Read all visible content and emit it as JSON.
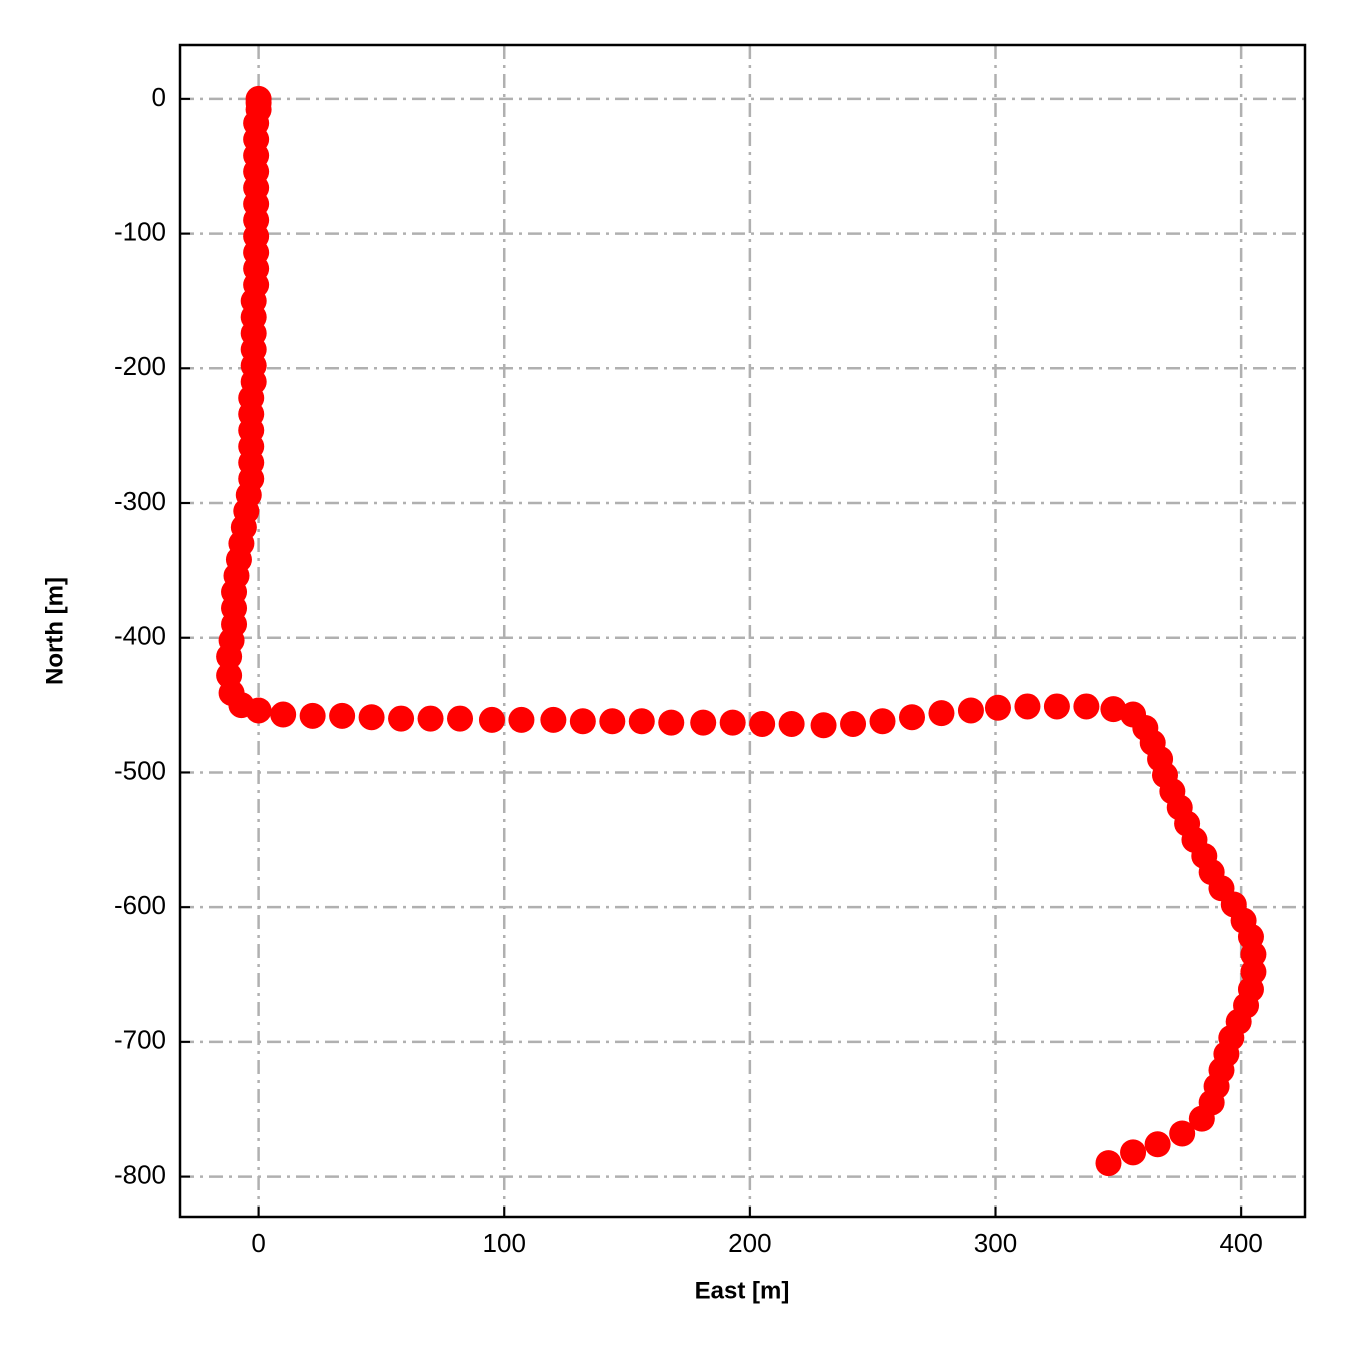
{
  "chart_data": {
    "type": "scatter",
    "xlabel": "East [m]",
    "ylabel": "North [m]",
    "color": "#ff0000",
    "grid": true,
    "xlim": [
      -32,
      426
    ],
    "ylim": [
      -830,
      40
    ],
    "xticks": [
      0,
      100,
      200,
      300,
      400
    ],
    "yticks": [
      0,
      -100,
      -200,
      -300,
      -400,
      -500,
      -600,
      -700,
      -800
    ],
    "x": [
      0,
      0,
      0,
      -1,
      -1,
      -1,
      -1,
      -1,
      -1,
      -1,
      -1,
      -1,
      -1,
      -1,
      -2,
      -2,
      -2,
      -2,
      -2,
      -2,
      -3,
      -3,
      -3,
      -3,
      -3,
      -3,
      -4,
      -5,
      -6,
      -7,
      -8,
      -9,
      -10,
      -10,
      -10,
      -11,
      -12,
      -12,
      -11,
      -7,
      0,
      10,
      22,
      34,
      46,
      58,
      70,
      82,
      95,
      107,
      120,
      132,
      144,
      156,
      168,
      181,
      193,
      205,
      217,
      230,
      242,
      254,
      266,
      278,
      290,
      301,
      313,
      325,
      337,
      348,
      356,
      361,
      364,
      367,
      369,
      372,
      375,
      378,
      381,
      385,
      388,
      392,
      397,
      401,
      404,
      405,
      405,
      404,
      402,
      399,
      396,
      394,
      392,
      390,
      388,
      384,
      376,
      366,
      356,
      346
    ],
    "y": [
      0,
      -3,
      -8,
      -18,
      -30,
      -42,
      -54,
      -66,
      -78,
      -90,
      -102,
      -114,
      -126,
      -138,
      -150,
      -162,
      -174,
      -186,
      -198,
      -210,
      -222,
      -234,
      -246,
      -258,
      -270,
      -282,
      -294,
      -306,
      -318,
      -330,
      -342,
      -354,
      -366,
      -378,
      -390,
      -402,
      -414,
      -428,
      -441,
      -450,
      -454,
      -457,
      -458,
      -458,
      -459,
      -460,
      -460,
      -460,
      -461,
      -461,
      -461,
      -462,
      -462,
      -462,
      -463,
      -463,
      -463,
      -464,
      -464,
      -465,
      -464,
      -462,
      -459,
      -456,
      -454,
      -452,
      -451,
      -451,
      -451,
      -453,
      -457,
      -467,
      -478,
      -490,
      -502,
      -514,
      -526,
      -538,
      -550,
      -562,
      -574,
      -586,
      -598,
      -610,
      -622,
      -635,
      -648,
      -661,
      -673,
      -685,
      -697,
      -709,
      -721,
      -733,
      -745,
      -757,
      -768,
      -776,
      -782,
      -790
    ]
  }
}
